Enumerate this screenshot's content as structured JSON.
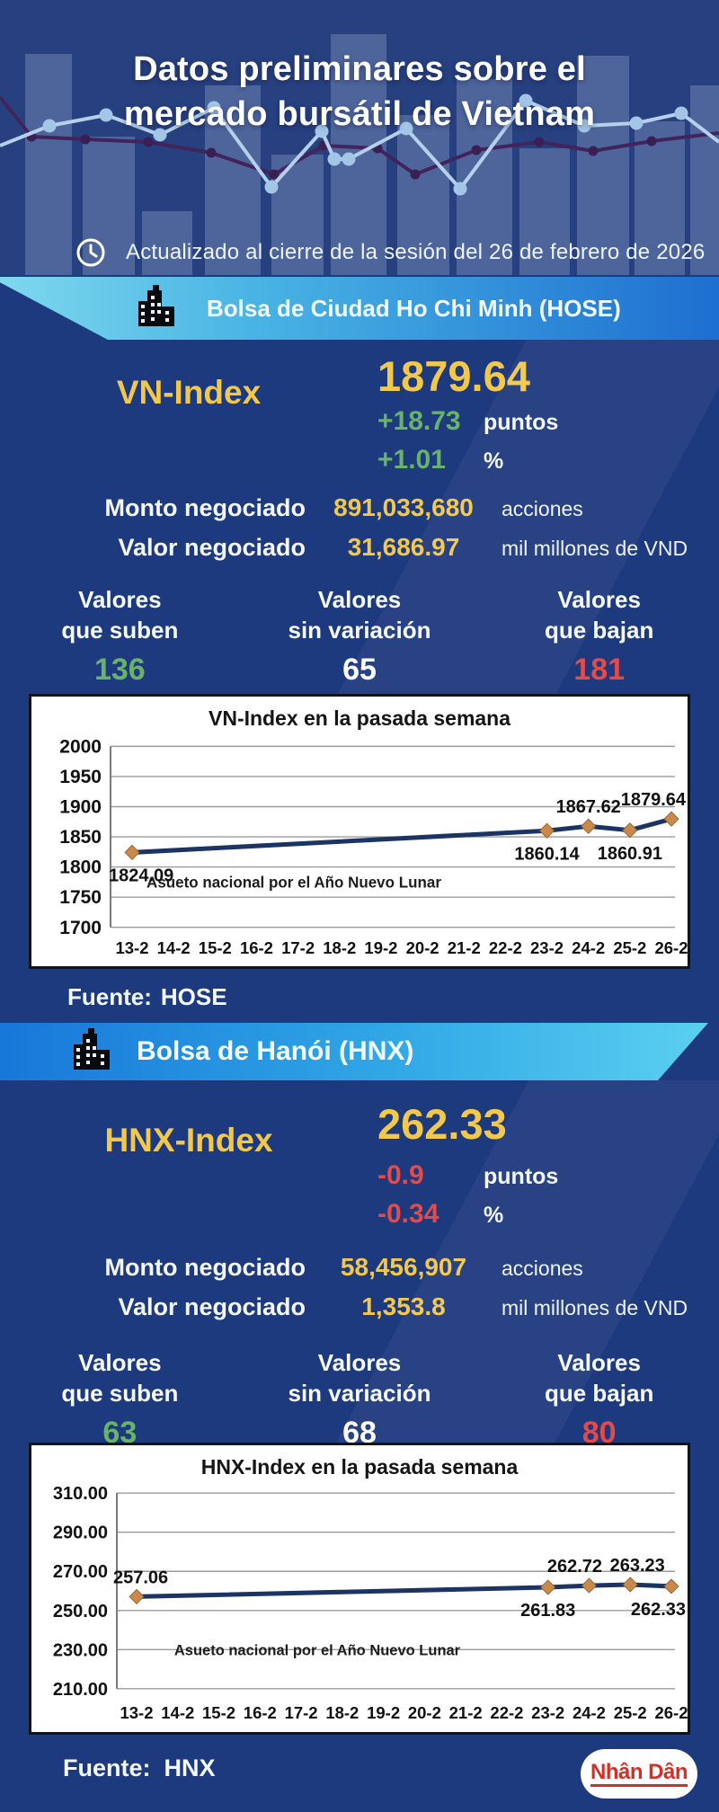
{
  "header": {
    "title_line1": "Datos preliminares sobre el",
    "title_line2": "mercado bursátil de Vietnam",
    "updated": "Actualizado al cierre de la sesión del 26 de febrero de 2026"
  },
  "hose": {
    "banner": "Bolsa de Ciudad Ho Chi Minh (HOSE)",
    "index_label": "VN-Index",
    "index_value": "1879.64",
    "change_points": "+18.73",
    "change_points_unit": "puntos",
    "change_pct": "+1.01",
    "change_pct_unit": "%",
    "volume_label": "Monto negociado",
    "volume_value": "891,033,680",
    "volume_unit": "acciones",
    "value_label": "Valor negociado",
    "value_value": "31,686.97",
    "value_unit": "mil millones de VND",
    "advancers_label1": "Valores",
    "advancers_label2": "que suben",
    "advancers": "136",
    "unchanged_label1": "Valores",
    "unchanged_label2": "sin variación",
    "unchanged": "65",
    "decliners_label1": "Valores",
    "decliners_label2": "que bajan",
    "decliners": "181",
    "source_label": "Fuente:",
    "source": "HOSE"
  },
  "hnx": {
    "banner": "Bolsa de Hanói (HNX)",
    "index_label": "HNX-Index",
    "index_value": "262.33",
    "change_points": "-0.9",
    "change_points_unit": "puntos",
    "change_pct": "-0.34",
    "change_pct_unit": "%",
    "volume_label": "Monto negociado",
    "volume_value": "58,456,907",
    "volume_unit": "acciones",
    "value_label": "Valor negociado",
    "value_value": "1,353.8",
    "value_unit": "mil millones de VND",
    "advancers_label1": "Valores",
    "advancers_label2": "que suben",
    "advancers": "63",
    "unchanged_label1": "Valores",
    "unchanged_label2": "sin variación",
    "unchanged": "68",
    "decliners_label1": "Valores",
    "decliners_label2": "que bajan",
    "decliners": "80",
    "source_label": "Fuente:",
    "source": "HNX"
  },
  "footer": {
    "logo": "Nhân Dân"
  },
  "colors": {
    "bg": "#1e3a7e",
    "header_bg": "#27407f",
    "yellow": "#f2c84c",
    "green": "#69b269",
    "red": "#e34a4a",
    "banner_hose_left": "#7ed8ee",
    "banner_hose_right": "#1e6fd0",
    "banner_hnx_left": "#1877d9",
    "banner_hnx_right": "#5bd2f0",
    "chart_line": "#1b3464",
    "chart_marker": "#c9894b",
    "logo_red": "#d23026"
  },
  "chart_data": [
    {
      "type": "line",
      "title": "VN-Index en la pasada semana",
      "categories": [
        "13-2",
        "14-2",
        "15-2",
        "16-2",
        "17-2",
        "18-2",
        "19-2",
        "20-2",
        "21-2",
        "22-2",
        "23-2",
        "24-2",
        "25-2",
        "26-2"
      ],
      "xlabel": "",
      "ylabel": "",
      "ylim": [
        1700,
        2000
      ],
      "grid": true,
      "legend": false,
      "yticks": [
        {
          "value": 2000,
          "label": "2000"
        },
        {
          "value": 1950,
          "label": "1950"
        },
        {
          "value": 1900,
          "label": "1900"
        },
        {
          "value": 1850,
          "label": "1850"
        },
        {
          "value": 1800,
          "label": "1800"
        },
        {
          "value": 1750,
          "label": "1750"
        },
        {
          "value": 1700,
          "label": "1700"
        }
      ],
      "series": [
        {
          "name": "VN-Index",
          "points": [
            {
              "category": "13-2",
              "value": 1824.09,
              "label": "1824.09",
              "label_pos": "below",
              "align": "start"
            },
            {
              "category": "23-2",
              "value": 1860.14,
              "label": "1860.14",
              "label_pos": "below"
            },
            {
              "category": "24-2",
              "value": 1867.62,
              "label": "1867.62",
              "label_pos": "above"
            },
            {
              "category": "25-2",
              "value": 1860.91,
              "label": "1860.91",
              "label_pos": "below"
            },
            {
              "category": "26-2",
              "value": 1879.64,
              "label": "1879.64",
              "label_pos": "above",
              "align": "end"
            }
          ]
        }
      ],
      "annotation": "Asueto nacional por el Año Nuevo Lunar",
      "line_color": "#1b3464",
      "marker_color": "#c9894b"
    },
    {
      "type": "line",
      "title": "HNX-Index en la pasada semana",
      "categories": [
        "13-2",
        "14-2",
        "15-2",
        "16-2",
        "17-2",
        "18-2",
        "19-2",
        "20-2",
        "21-2",
        "22-2",
        "23-2",
        "24-2",
        "25-2",
        "26-2"
      ],
      "xlabel": "",
      "ylabel": "",
      "ylim": [
        210,
        310
      ],
      "grid": true,
      "legend": false,
      "yticks": [
        {
          "value": 310,
          "label": "310.00"
        },
        {
          "value": 290,
          "label": "290.00"
        },
        {
          "value": 270,
          "label": "270.00"
        },
        {
          "value": 250,
          "label": "250.00"
        },
        {
          "value": 230,
          "label": "230.00"
        },
        {
          "value": 210,
          "label": "210.00"
        }
      ],
      "series": [
        {
          "name": "HNX-Index",
          "points": [
            {
              "category": "13-2",
              "value": 257.06,
              "label": "257.06",
              "label_pos": "above",
              "align": "start"
            },
            {
              "category": "23-2",
              "value": 261.83,
              "label": "261.83",
              "label_pos": "below"
            },
            {
              "category": "24-2",
              "value": 262.72,
              "label": "262.72",
              "label_pos": "above",
              "dx": -16
            },
            {
              "category": "25-2",
              "value": 263.23,
              "label": "263.23",
              "label_pos": "above",
              "dx": 8
            },
            {
              "category": "26-2",
              "value": 262.33,
              "label": "262.33",
              "label_pos": "below",
              "align": "end"
            }
          ]
        }
      ],
      "annotation": "Asueto nacional por el Año Nuevo Lunar",
      "line_color": "#1b3464",
      "marker_color": "#c9894b"
    }
  ]
}
